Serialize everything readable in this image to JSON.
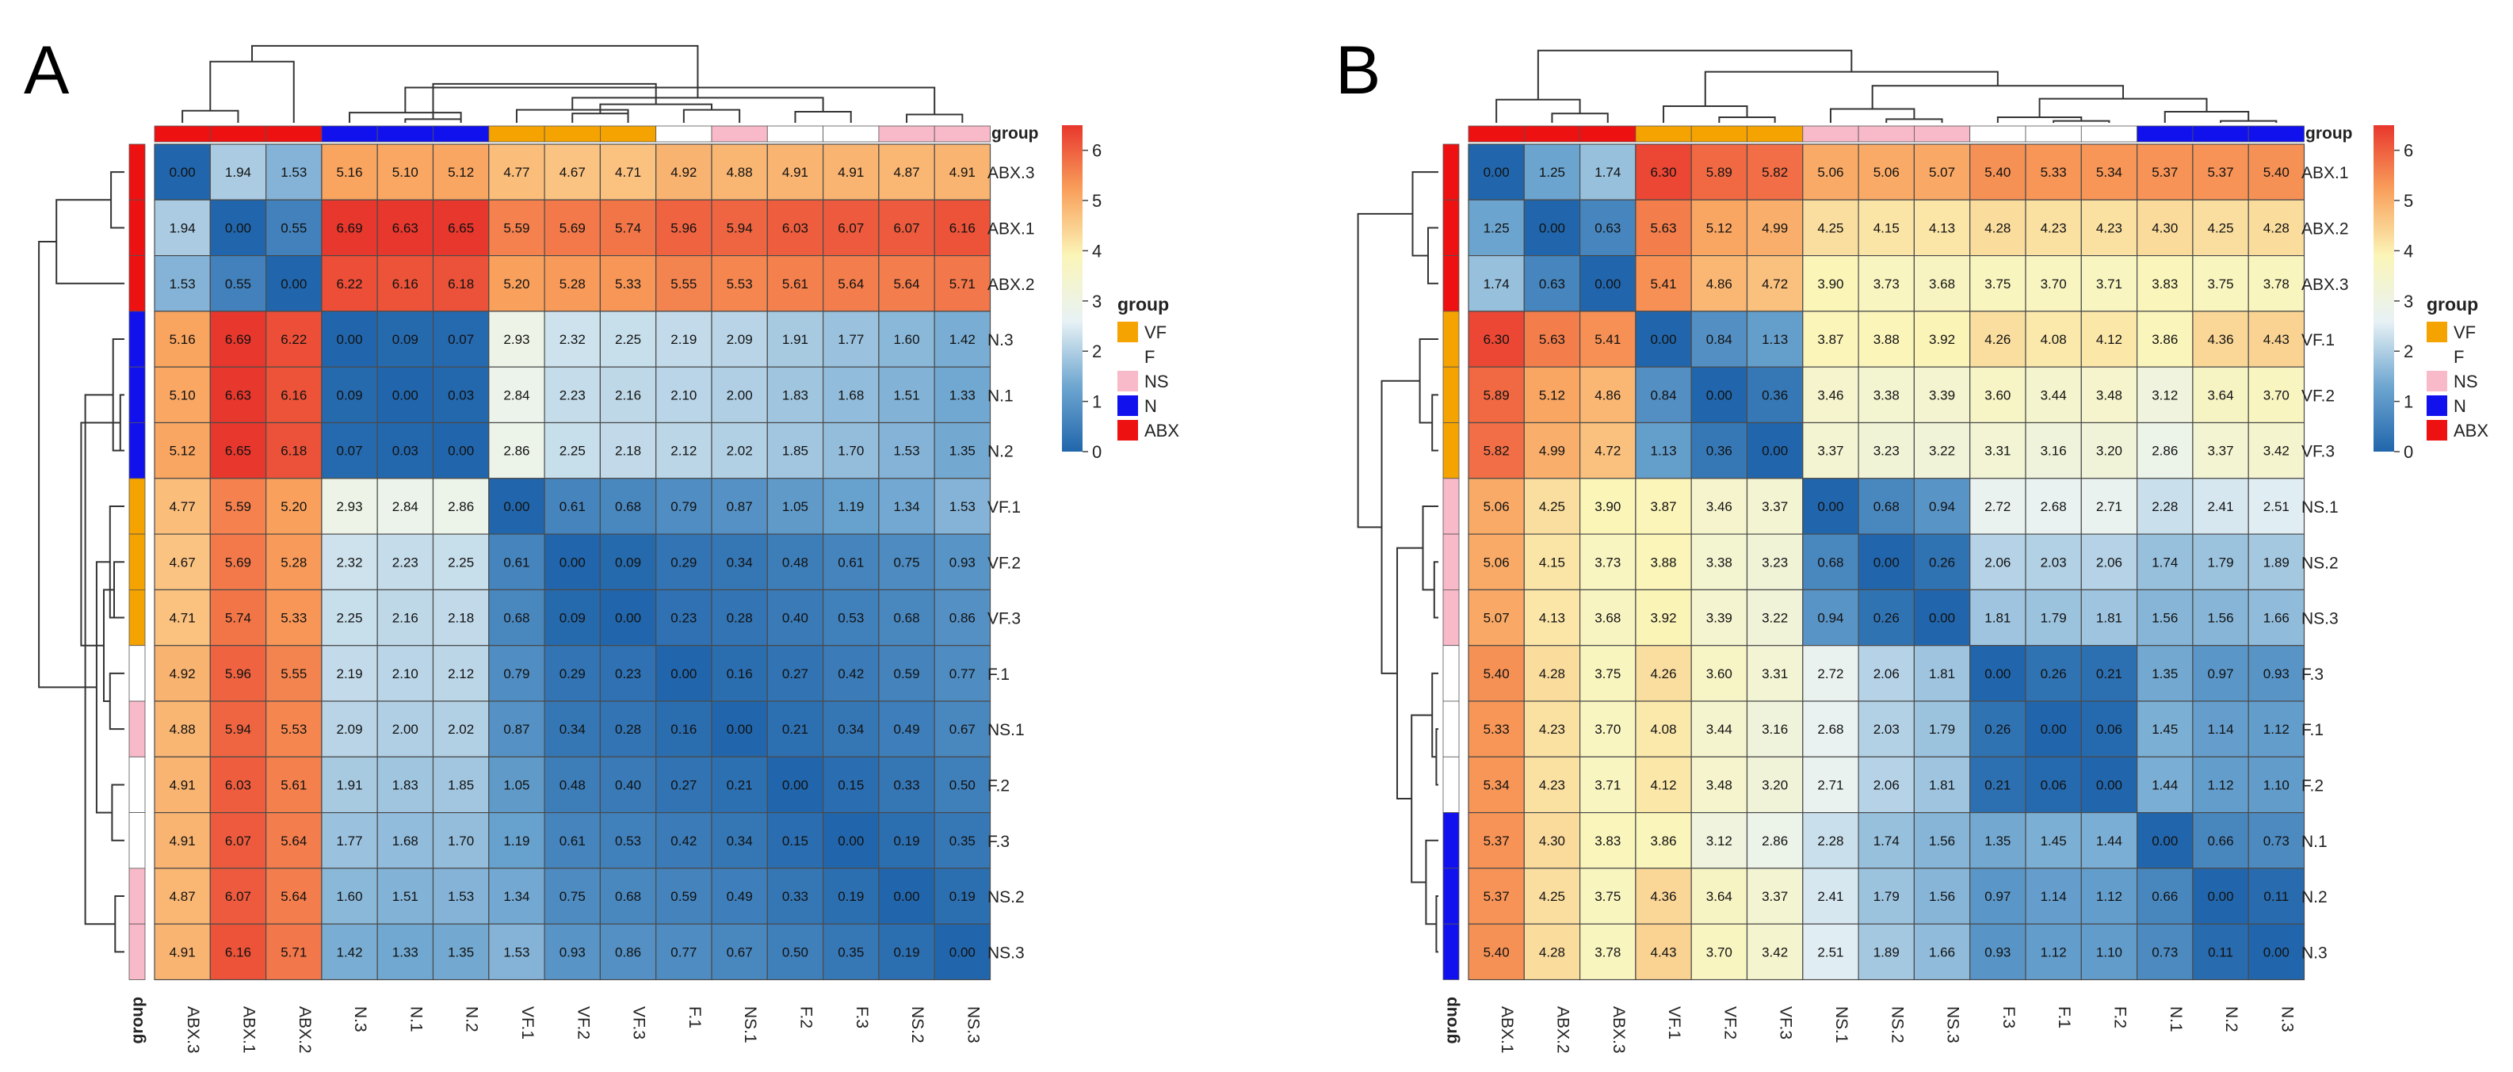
{
  "group_colors": {
    "ABX": "#ee1111",
    "N": "#1111ee",
    "VF": "#f5a300",
    "F": "#ffffff",
    "NS": "#f8b9c9"
  },
  "color_scale": {
    "min": 0,
    "max": 6.5,
    "stops": [
      "#2166ac",
      "#6ea6d0",
      "#e8f2f5",
      "#fbf5b8",
      "#f9a15c",
      "#e8372d"
    ]
  },
  "legend": {
    "title": "group",
    "entries": [
      {
        "label": "VF",
        "color": "#f5a300"
      },
      {
        "label": "F",
        "color": "#ffffff"
      },
      {
        "label": "NS",
        "color": "#f8b9c9"
      },
      {
        "label": "N",
        "color": "#1111ee"
      },
      {
        "label": "ABX",
        "color": "#ee1111"
      }
    ]
  },
  "chart_data": [
    {
      "panel": "A",
      "type": "heatmap",
      "annotation_label": "group",
      "colorbar_ticks": [
        "6",
        "5",
        "4",
        "3",
        "2",
        "1",
        "0"
      ],
      "labels": [
        "ABX.3",
        "ABX.1",
        "ABX.2",
        "N.3",
        "N.1",
        "N.2",
        "VF.1",
        "VF.2",
        "VF.3",
        "F.1",
        "NS.1",
        "F.2",
        "F.3",
        "NS.2",
        "NS.3"
      ],
      "groups": [
        "ABX",
        "ABX",
        "ABX",
        "N",
        "N",
        "N",
        "VF",
        "VF",
        "VF",
        "F",
        "NS",
        "F",
        "F",
        "NS",
        "NS"
      ],
      "values": [
        [
          "0.00",
          "1.94",
          "1.53",
          "5.16",
          "5.10",
          "5.12",
          "4.77",
          "4.67",
          "4.71",
          "4.92",
          "4.88",
          "4.91",
          "4.91",
          "4.87",
          "4.91"
        ],
        [
          "1.94",
          "0.00",
          "0.55",
          "6.69",
          "6.63",
          "6.65",
          "5.59",
          "5.69",
          "5.74",
          "5.96",
          "5.94",
          "6.03",
          "6.07",
          "6.07",
          "6.16"
        ],
        [
          "1.53",
          "0.55",
          "0.00",
          "6.22",
          "6.16",
          "6.18",
          "5.20",
          "5.28",
          "5.33",
          "5.55",
          "5.53",
          "5.61",
          "5.64",
          "5.64",
          "5.71"
        ],
        [
          "5.16",
          "6.69",
          "6.22",
          "0.00",
          "0.09",
          "0.07",
          "2.93",
          "2.32",
          "2.25",
          "2.19",
          "2.09",
          "1.91",
          "1.77",
          "1.60",
          "1.42"
        ],
        [
          "5.10",
          "6.63",
          "6.16",
          "0.09",
          "0.00",
          "0.03",
          "2.84",
          "2.23",
          "2.16",
          "2.10",
          "2.00",
          "1.83",
          "1.68",
          "1.51",
          "1.33"
        ],
        [
          "5.12",
          "6.65",
          "6.18",
          "0.07",
          "0.03",
          "0.00",
          "2.86",
          "2.25",
          "2.18",
          "2.12",
          "2.02",
          "1.85",
          "1.70",
          "1.53",
          "1.35"
        ],
        [
          "4.77",
          "5.59",
          "5.20",
          "2.93",
          "2.84",
          "2.86",
          "0.00",
          "0.61",
          "0.68",
          "0.79",
          "0.87",
          "1.05",
          "1.19",
          "1.34",
          "1.53"
        ],
        [
          "4.67",
          "5.69",
          "5.28",
          "2.32",
          "2.23",
          "2.25",
          "0.61",
          "0.00",
          "0.09",
          "0.29",
          "0.34",
          "0.48",
          "0.61",
          "0.75",
          "0.93"
        ],
        [
          "4.71",
          "5.74",
          "5.33",
          "2.25",
          "2.16",
          "2.18",
          "0.68",
          "0.09",
          "0.00",
          "0.23",
          "0.28",
          "0.40",
          "0.53",
          "0.68",
          "0.86"
        ],
        [
          "4.92",
          "5.96",
          "5.55",
          "2.19",
          "2.10",
          "2.12",
          "0.79",
          "0.29",
          "0.23",
          "0.00",
          "0.16",
          "0.27",
          "0.42",
          "0.59",
          "0.77"
        ],
        [
          "4.88",
          "5.94",
          "5.53",
          "2.09",
          "2.00",
          "2.02",
          "0.87",
          "0.34",
          "0.28",
          "0.16",
          "0.00",
          "0.21",
          "0.34",
          "0.49",
          "0.67"
        ],
        [
          "4.91",
          "6.03",
          "5.61",
          "1.91",
          "1.83",
          "1.85",
          "1.05",
          "0.48",
          "0.40",
          "0.27",
          "0.21",
          "0.00",
          "0.15",
          "0.33",
          "0.50"
        ],
        [
          "4.91",
          "6.07",
          "5.64",
          "1.77",
          "1.68",
          "1.70",
          "1.19",
          "0.61",
          "0.53",
          "0.42",
          "0.34",
          "0.15",
          "0.00",
          "0.19",
          "0.35"
        ],
        [
          "4.87",
          "6.07",
          "5.64",
          "1.60",
          "1.51",
          "1.53",
          "1.34",
          "0.75",
          "0.68",
          "0.59",
          "0.49",
          "0.33",
          "0.19",
          "0.00",
          "0.19"
        ],
        [
          "4.91",
          "6.16",
          "5.71",
          "1.42",
          "1.33",
          "1.35",
          "1.53",
          "0.93",
          "0.86",
          "0.77",
          "0.67",
          "0.50",
          "0.35",
          "0.19",
          "0.00"
        ]
      ]
    },
    {
      "panel": "B",
      "type": "heatmap",
      "annotation_label": "group",
      "colorbar_ticks": [
        "6",
        "5",
        "4",
        "3",
        "2",
        "1",
        "0"
      ],
      "labels": [
        "ABX.1",
        "ABX.2",
        "ABX.3",
        "VF.1",
        "VF.2",
        "VF.3",
        "NS.1",
        "NS.2",
        "NS.3",
        "F.3",
        "F.1",
        "F.2",
        "N.1",
        "N.2",
        "N.3"
      ],
      "groups": [
        "ABX",
        "ABX",
        "ABX",
        "VF",
        "VF",
        "VF",
        "NS",
        "NS",
        "NS",
        "F",
        "F",
        "F",
        "N",
        "N",
        "N"
      ],
      "values": [
        [
          "0.00",
          "1.25",
          "1.74",
          "6.30",
          "5.89",
          "5.82",
          "5.06",
          "5.06",
          "5.07",
          "5.40",
          "5.33",
          "5.34",
          "5.37",
          "5.37",
          "5.40"
        ],
        [
          "1.25",
          "0.00",
          "0.63",
          "5.63",
          "5.12",
          "4.99",
          "4.25",
          "4.15",
          "4.13",
          "4.28",
          "4.23",
          "4.23",
          "4.30",
          "4.25",
          "4.28"
        ],
        [
          "1.74",
          "0.63",
          "0.00",
          "5.41",
          "4.86",
          "4.72",
          "3.90",
          "3.73",
          "3.68",
          "3.75",
          "3.70",
          "3.71",
          "3.83",
          "3.75",
          "3.78"
        ],
        [
          "6.30",
          "5.63",
          "5.41",
          "0.00",
          "0.84",
          "1.13",
          "3.87",
          "3.88",
          "3.92",
          "4.26",
          "4.08",
          "4.12",
          "3.86",
          "4.36",
          "4.43"
        ],
        [
          "5.89",
          "5.12",
          "4.86",
          "0.84",
          "0.00",
          "0.36",
          "3.46",
          "3.38",
          "3.39",
          "3.60",
          "3.44",
          "3.48",
          "3.12",
          "3.64",
          "3.70"
        ],
        [
          "5.82",
          "4.99",
          "4.72",
          "1.13",
          "0.36",
          "0.00",
          "3.37",
          "3.23",
          "3.22",
          "3.31",
          "3.16",
          "3.20",
          "2.86",
          "3.37",
          "3.42"
        ],
        [
          "5.06",
          "4.25",
          "3.90",
          "3.87",
          "3.46",
          "3.37",
          "0.00",
          "0.68",
          "0.94",
          "2.72",
          "2.68",
          "2.71",
          "2.28",
          "2.41",
          "2.51"
        ],
        [
          "5.06",
          "4.15",
          "3.73",
          "3.88",
          "3.38",
          "3.23",
          "0.68",
          "0.00",
          "0.26",
          "2.06",
          "2.03",
          "2.06",
          "1.74",
          "1.79",
          "1.89"
        ],
        [
          "5.07",
          "4.13",
          "3.68",
          "3.92",
          "3.39",
          "3.22",
          "0.94",
          "0.26",
          "0.00",
          "1.81",
          "1.79",
          "1.81",
          "1.56",
          "1.56",
          "1.66"
        ],
        [
          "5.40",
          "4.28",
          "3.75",
          "4.26",
          "3.60",
          "3.31",
          "2.72",
          "2.06",
          "1.81",
          "0.00",
          "0.26",
          "0.21",
          "1.35",
          "0.97",
          "0.93"
        ],
        [
          "5.33",
          "4.23",
          "3.70",
          "4.08",
          "3.44",
          "3.16",
          "2.68",
          "2.03",
          "1.79",
          "0.26",
          "0.00",
          "0.06",
          "1.45",
          "1.14",
          "1.12"
        ],
        [
          "5.34",
          "4.23",
          "3.71",
          "4.12",
          "3.48",
          "3.20",
          "2.71",
          "2.06",
          "1.81",
          "0.21",
          "0.06",
          "0.00",
          "1.44",
          "1.12",
          "1.10"
        ],
        [
          "5.37",
          "4.30",
          "3.83",
          "3.86",
          "3.12",
          "2.86",
          "2.28",
          "1.74",
          "1.56",
          "1.35",
          "1.45",
          "1.44",
          "0.00",
          "0.66",
          "0.73"
        ],
        [
          "5.37",
          "4.25",
          "3.75",
          "4.36",
          "3.64",
          "3.37",
          "2.41",
          "1.79",
          "1.56",
          "0.97",
          "1.14",
          "1.12",
          "0.66",
          "0.00",
          "0.11"
        ],
        [
          "5.40",
          "4.28",
          "3.78",
          "4.43",
          "3.70",
          "3.42",
          "2.51",
          "1.89",
          "1.66",
          "0.93",
          "1.12",
          "1.10",
          "0.73",
          "0.11",
          "0.00"
        ]
      ]
    }
  ]
}
